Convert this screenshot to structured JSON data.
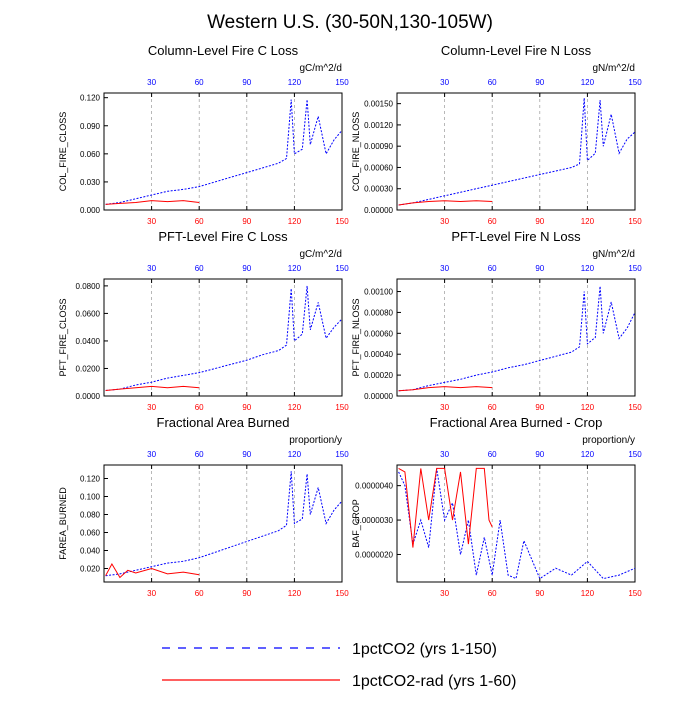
{
  "page": {
    "title": "Western U.S. (30-50N,130-105W)"
  },
  "legend": {
    "entries": [
      {
        "label": "1pctCO2 (yrs 1-150)",
        "color": "#0000ff",
        "style": "dashed"
      },
      {
        "label": "1pctCO2-rad (yrs 1-60)",
        "color": "#ff0000",
        "style": "solid"
      }
    ]
  },
  "colors": {
    "series_a": "#0000ff",
    "series_b": "#ff0000",
    "top_ticks": "#0000ff",
    "bottom_ticks": "#ff0000",
    "grid": "#999999"
  },
  "chart_data": [
    {
      "type": "line",
      "title": "Column-Level Fire C Loss",
      "units": "gC/m^2/d",
      "ylabel": "COL_FIRE_CLOSS",
      "xlim": [
        0,
        150
      ],
      "ylim": [
        0,
        0.125
      ],
      "xticks": [
        30,
        60,
        90,
        120,
        150
      ],
      "yticks": [
        0,
        0.03,
        0.06,
        0.09,
        0.12
      ],
      "ytick_labels": [
        "0.000",
        "0.030",
        "0.060",
        "0.090",
        "0.120"
      ],
      "grid_x": true,
      "series": [
        {
          "name": "1pctCO2 (yrs 1-150)",
          "x": [
            1,
            10,
            20,
            30,
            40,
            50,
            60,
            70,
            80,
            90,
            100,
            110,
            115,
            118,
            120,
            125,
            128,
            130,
            135,
            140,
            145,
            150
          ],
          "y": [
            0.006,
            0.008,
            0.012,
            0.016,
            0.02,
            0.022,
            0.025,
            0.03,
            0.035,
            0.04,
            0.045,
            0.05,
            0.055,
            0.118,
            0.06,
            0.065,
            0.118,
            0.07,
            0.1,
            0.06,
            0.075,
            0.085
          ]
        },
        {
          "name": "1pctCO2-rad (yrs 1-60)",
          "x": [
            1,
            10,
            20,
            30,
            40,
            50,
            60
          ],
          "y": [
            0.006,
            0.007,
            0.008,
            0.01,
            0.009,
            0.01,
            0.008
          ]
        }
      ]
    },
    {
      "type": "line",
      "title": "Column-Level Fire N Loss",
      "units": "gN/m^2/d",
      "ylabel": "COL_FIRE_NLOSS",
      "xlim": [
        0,
        150
      ],
      "ylim": [
        0,
        0.00165
      ],
      "xticks": [
        30,
        60,
        90,
        120,
        150
      ],
      "yticks": [
        0,
        0.0003,
        0.0006,
        0.0009,
        0.0012,
        0.0015
      ],
      "ytick_labels": [
        "0.00000",
        "0.00030",
        "0.00060",
        "0.00090",
        "0.00120",
        "0.00150"
      ],
      "grid_x": true,
      "series": [
        {
          "name": "1pctCO2 (yrs 1-150)",
          "x": [
            1,
            10,
            20,
            30,
            40,
            50,
            60,
            70,
            80,
            90,
            100,
            110,
            115,
            118,
            120,
            125,
            128,
            130,
            135,
            140,
            145,
            150
          ],
          "y": [
            7e-05,
            0.0001,
            0.00015,
            0.0002,
            0.00025,
            0.0003,
            0.00035,
            0.0004,
            0.00045,
            0.0005,
            0.00055,
            0.0006,
            0.00065,
            0.00158,
            0.0007,
            0.0008,
            0.00155,
            0.0009,
            0.00135,
            0.0008,
            0.001,
            0.0011
          ]
        },
        {
          "name": "1pctCO2-rad (yrs 1-60)",
          "x": [
            1,
            10,
            20,
            30,
            40,
            50,
            60
          ],
          "y": [
            7e-05,
            0.0001,
            0.00012,
            0.00013,
            0.00012,
            0.00013,
            0.00012
          ]
        }
      ]
    },
    {
      "type": "line",
      "title": "PFT-Level Fire C Loss",
      "units": "gC/m^2/d",
      "ylabel": "PFT_FIRE_CLOSS",
      "xlim": [
        0,
        150
      ],
      "ylim": [
        0,
        0.085
      ],
      "xticks": [
        30,
        60,
        90,
        120,
        150
      ],
      "yticks": [
        0,
        0.02,
        0.04,
        0.06,
        0.08
      ],
      "ytick_labels": [
        "0.0000",
        "0.0200",
        "0.0400",
        "0.0600",
        "0.0800"
      ],
      "grid_x": true,
      "series": [
        {
          "name": "1pctCO2 (yrs 1-150)",
          "x": [
            1,
            10,
            20,
            30,
            40,
            50,
            60,
            70,
            80,
            90,
            100,
            110,
            115,
            118,
            120,
            125,
            128,
            130,
            135,
            140,
            145,
            150
          ],
          "y": [
            0.004,
            0.005,
            0.008,
            0.01,
            0.013,
            0.015,
            0.017,
            0.02,
            0.023,
            0.026,
            0.03,
            0.033,
            0.037,
            0.078,
            0.04,
            0.045,
            0.08,
            0.048,
            0.068,
            0.042,
            0.05,
            0.056
          ]
        },
        {
          "name": "1pctCO2-rad (yrs 1-60)",
          "x": [
            1,
            10,
            20,
            30,
            40,
            50,
            60
          ],
          "y": [
            0.004,
            0.005,
            0.006,
            0.007,
            0.006,
            0.007,
            0.006
          ]
        }
      ]
    },
    {
      "type": "line",
      "title": "PFT-Level Fire N Loss",
      "units": "gN/m^2/d",
      "ylabel": "PFT_FIRE_NLOSS",
      "xlim": [
        0,
        150
      ],
      "ylim": [
        0,
        0.00112
      ],
      "xticks": [
        30,
        60,
        90,
        120,
        150
      ],
      "yticks": [
        0,
        0.0002,
        0.0004,
        0.0006,
        0.0008,
        0.001
      ],
      "ytick_labels": [
        "0.00000",
        "0.00020",
        "0.00040",
        "0.00060",
        "0.00080",
        "0.00100"
      ],
      "grid_x": true,
      "series": [
        {
          "name": "1pctCO2 (yrs 1-150)",
          "x": [
            1,
            10,
            20,
            30,
            40,
            50,
            60,
            70,
            80,
            90,
            100,
            110,
            115,
            118,
            120,
            125,
            128,
            130,
            135,
            140,
            145,
            150
          ],
          "y": [
            5e-05,
            6e-05,
            0.0001,
            0.00013,
            0.00016,
            0.0002,
            0.00023,
            0.00027,
            0.0003,
            0.00034,
            0.00038,
            0.00042,
            0.00047,
            0.001,
            0.0005,
            0.00056,
            0.00105,
            0.0006,
            0.0009,
            0.00055,
            0.00065,
            0.0008
          ]
        },
        {
          "name": "1pctCO2-rad (yrs 1-60)",
          "x": [
            1,
            10,
            20,
            30,
            40,
            50,
            60
          ],
          "y": [
            5e-05,
            6e-05,
            8e-05,
            9e-05,
            8e-05,
            9e-05,
            8e-05
          ]
        }
      ]
    },
    {
      "type": "line",
      "title": "Fractional Area Burned",
      "units": "proportion/y",
      "ylabel": "FAREA_BURNED",
      "xlim": [
        0,
        150
      ],
      "ylim": [
        0.005,
        0.135
      ],
      "xticks": [
        30,
        60,
        90,
        120,
        150
      ],
      "yticks": [
        0.02,
        0.04,
        0.06,
        0.08,
        0.1,
        0.12
      ],
      "ytick_labels": [
        "0.020",
        "0.040",
        "0.060",
        "0.080",
        "0.100",
        "0.120"
      ],
      "grid_x": true,
      "series": [
        {
          "name": "1pctCO2 (yrs 1-150)",
          "x": [
            1,
            10,
            20,
            30,
            40,
            50,
            60,
            70,
            80,
            90,
            100,
            110,
            115,
            118,
            120,
            125,
            128,
            130,
            135,
            140,
            145,
            150
          ],
          "y": [
            0.012,
            0.014,
            0.018,
            0.022,
            0.026,
            0.028,
            0.032,
            0.038,
            0.044,
            0.05,
            0.056,
            0.062,
            0.068,
            0.128,
            0.07,
            0.075,
            0.125,
            0.08,
            0.11,
            0.07,
            0.085,
            0.095
          ]
        },
        {
          "name": "1pctCO2-rad (yrs 1-60)",
          "x": [
            1,
            5,
            10,
            15,
            20,
            30,
            40,
            50,
            60
          ],
          "y": [
            0.012,
            0.025,
            0.01,
            0.018,
            0.015,
            0.02,
            0.014,
            0.016,
            0.013
          ]
        }
      ]
    },
    {
      "type": "line",
      "title": "Fractional Area Burned - Crop",
      "units": "proportion/y",
      "ylabel": "BAF_CROP",
      "xlim": [
        0,
        150
      ],
      "ylim": [
        1.2e-06,
        4.6e-06
      ],
      "xticks": [
        30,
        60,
        90,
        120,
        150
      ],
      "yticks": [
        2e-06,
        3e-06,
        4e-06
      ],
      "ytick_labels": [
        "0.0000020",
        "0.0000030",
        "0.0000040"
      ],
      "grid_x": true,
      "series": [
        {
          "name": "1pctCO2 (yrs 1-150)",
          "x": [
            1,
            5,
            10,
            15,
            20,
            25,
            30,
            35,
            40,
            45,
            50,
            55,
            60,
            65,
            70,
            75,
            80,
            90,
            100,
            110,
            120,
            130,
            140,
            150
          ],
          "y": [
            4.4e-06,
            4e-06,
            2.3e-06,
            3e-06,
            2.2e-06,
            4.5e-06,
            3e-06,
            3.5e-06,
            2e-06,
            3e-06,
            1.4e-06,
            2.5e-06,
            1.4e-06,
            3e-06,
            1.4e-06,
            1.3e-06,
            2.4e-06,
            1.3e-06,
            1.6e-06,
            1.4e-06,
            1.8e-06,
            1.3e-06,
            1.4e-06,
            1.6e-06
          ]
        },
        {
          "name": "1pctCO2-rad (yrs 1-60)",
          "x": [
            1,
            5,
            10,
            15,
            20,
            25,
            30,
            35,
            40,
            45,
            50,
            55,
            58,
            60
          ],
          "y": [
            4.5e-06,
            4.4e-06,
            2.2e-06,
            4.5e-06,
            3e-06,
            4.5e-06,
            4.5e-06,
            3e-06,
            4.4e-06,
            2.3e-06,
            4.5e-06,
            4.5e-06,
            3e-06,
            2.8e-06
          ]
        }
      ]
    }
  ]
}
